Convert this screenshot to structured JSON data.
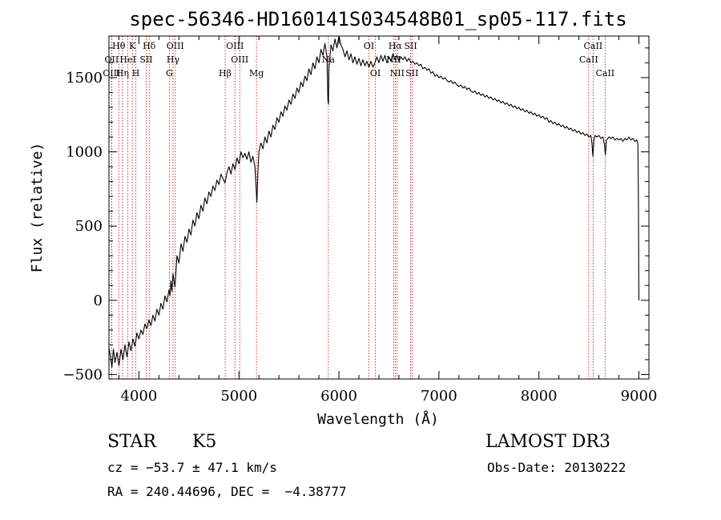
{
  "chart_data": {
    "type": "line",
    "title": "spec-56346-HD160141S034548B01_sp05-117.fits",
    "xlabel": "Wavelength (Å)",
    "ylabel": "Flux (relative)",
    "xlim": [
      3700,
      9100
    ],
    "ylim": [
      -530,
      1780
    ],
    "xticks": [
      4000,
      5000,
      6000,
      7000,
      8000,
      9000
    ],
    "yticks": [
      -500,
      0,
      500,
      1000,
      1500
    ],
    "series": [
      {
        "name": "spectrum",
        "points": [
          [
            3700,
            -320
          ],
          [
            3715,
            -380
          ],
          [
            3730,
            -450
          ],
          [
            3745,
            -330
          ],
          [
            3760,
            -420
          ],
          [
            3780,
            -350
          ],
          [
            3800,
            -440
          ],
          [
            3820,
            -330
          ],
          [
            3840,
            -400
          ],
          [
            3860,
            -300
          ],
          [
            3880,
            -380
          ],
          [
            3900,
            -280
          ],
          [
            3920,
            -340
          ],
          [
            3940,
            -260
          ],
          [
            3960,
            -310
          ],
          [
            3980,
            -220
          ],
          [
            4000,
            -260
          ],
          [
            4020,
            -200
          ],
          [
            4040,
            -230
          ],
          [
            4060,
            -160
          ],
          [
            4080,
            -190
          ],
          [
            4100,
            -130
          ],
          [
            4120,
            -170
          ],
          [
            4140,
            -100
          ],
          [
            4160,
            -140
          ],
          [
            4180,
            -60
          ],
          [
            4200,
            -100
          ],
          [
            4220,
            -20
          ],
          [
            4240,
            -60
          ],
          [
            4260,
            30
          ],
          [
            4280,
            -10
          ],
          [
            4300,
            70
          ],
          [
            4310,
            30
          ],
          [
            4320,
            130
          ],
          [
            4330,
            60
          ],
          [
            4340,
            180
          ],
          [
            4360,
            90
          ],
          [
            4380,
            300
          ],
          [
            4400,
            250
          ],
          [
            4420,
            380
          ],
          [
            4440,
            330
          ],
          [
            4460,
            430
          ],
          [
            4480,
            390
          ],
          [
            4500,
            480
          ],
          [
            4520,
            440
          ],
          [
            4540,
            540
          ],
          [
            4560,
            500
          ],
          [
            4580,
            590
          ],
          [
            4600,
            550
          ],
          [
            4620,
            640
          ],
          [
            4640,
            600
          ],
          [
            4660,
            690
          ],
          [
            4680,
            650
          ],
          [
            4700,
            730
          ],
          [
            4720,
            700
          ],
          [
            4740,
            770
          ],
          [
            4760,
            740
          ],
          [
            4780,
            810
          ],
          [
            4800,
            780
          ],
          [
            4820,
            850
          ],
          [
            4840,
            820
          ],
          [
            4860,
            790
          ],
          [
            4880,
            860
          ],
          [
            4900,
            900
          ],
          [
            4920,
            850
          ],
          [
            4940,
            920
          ],
          [
            4960,
            880
          ],
          [
            4980,
            960
          ],
          [
            5000,
            920
          ],
          [
            5020,
            1000
          ],
          [
            5040,
            960
          ],
          [
            5060,
            990
          ],
          [
            5080,
            950
          ],
          [
            5100,
            1000
          ],
          [
            5120,
            930
          ],
          [
            5140,
            970
          ],
          [
            5160,
            900
          ],
          [
            5170,
            780
          ],
          [
            5180,
            660
          ],
          [
            5190,
            880
          ],
          [
            5200,
            1000
          ],
          [
            5220,
            1060
          ],
          [
            5240,
            1020
          ],
          [
            5260,
            1100
          ],
          [
            5280,
            1060
          ],
          [
            5300,
            1140
          ],
          [
            5320,
            1100
          ],
          [
            5340,
            1180
          ],
          [
            5360,
            1150
          ],
          [
            5380,
            1230
          ],
          [
            5400,
            1200
          ],
          [
            5420,
            1270
          ],
          [
            5440,
            1240
          ],
          [
            5460,
            1310
          ],
          [
            5480,
            1280
          ],
          [
            5500,
            1350
          ],
          [
            5520,
            1320
          ],
          [
            5540,
            1390
          ],
          [
            5560,
            1360
          ],
          [
            5580,
            1430
          ],
          [
            5600,
            1400
          ],
          [
            5620,
            1470
          ],
          [
            5640,
            1440
          ],
          [
            5660,
            1510
          ],
          [
            5680,
            1480
          ],
          [
            5700,
            1560
          ],
          [
            5720,
            1520
          ],
          [
            5740,
            1600
          ],
          [
            5760,
            1560
          ],
          [
            5780,
            1640
          ],
          [
            5800,
            1600
          ],
          [
            5820,
            1690
          ],
          [
            5840,
            1650
          ],
          [
            5860,
            1730
          ],
          [
            5880,
            1640
          ],
          [
            5890,
            1350
          ],
          [
            5895,
            1320
          ],
          [
            5900,
            1560
          ],
          [
            5920,
            1720
          ],
          [
            5940,
            1680
          ],
          [
            5960,
            1760
          ],
          [
            5980,
            1700
          ],
          [
            6000,
            1780
          ],
          [
            6020,
            1720
          ],
          [
            6040,
            1690
          ],
          [
            6060,
            1640
          ],
          [
            6080,
            1680
          ],
          [
            6100,
            1620
          ],
          [
            6120,
            1660
          ],
          [
            6140,
            1600
          ],
          [
            6160,
            1640
          ],
          [
            6180,
            1590
          ],
          [
            6200,
            1630
          ],
          [
            6220,
            1580
          ],
          [
            6240,
            1620
          ],
          [
            6260,
            1580
          ],
          [
            6280,
            1610
          ],
          [
            6300,
            1570
          ],
          [
            6320,
            1610
          ],
          [
            6340,
            1570
          ],
          [
            6360,
            1600
          ],
          [
            6380,
            1640
          ],
          [
            6400,
            1600
          ],
          [
            6420,
            1650
          ],
          [
            6440,
            1610
          ],
          [
            6460,
            1650
          ],
          [
            6480,
            1600
          ],
          [
            6500,
            1640
          ],
          [
            6520,
            1610
          ],
          [
            6540,
            1660
          ],
          [
            6560,
            1620
          ],
          [
            6580,
            1650
          ],
          [
            6600,
            1610
          ],
          [
            6620,
            1640
          ],
          [
            6640,
            1620
          ],
          [
            6660,
            1640
          ],
          [
            6680,
            1610
          ],
          [
            6700,
            1630
          ],
          [
            6720,
            1600
          ],
          [
            6740,
            1610
          ],
          [
            6760,
            1590
          ],
          [
            6780,
            1600
          ],
          [
            6800,
            1580
          ],
          [
            6820,
            1590
          ],
          [
            6840,
            1560
          ],
          [
            6860,
            1570
          ],
          [
            6880,
            1550
          ],
          [
            6900,
            1560
          ],
          [
            6920,
            1530
          ],
          [
            6940,
            1540
          ],
          [
            6960,
            1510
          ],
          [
            6980,
            1520
          ],
          [
            7000,
            1500
          ],
          [
            7020,
            1510
          ],
          [
            7040,
            1490
          ],
          [
            7060,
            1500
          ],
          [
            7080,
            1480
          ],
          [
            7100,
            1470
          ],
          [
            7120,
            1480
          ],
          [
            7140,
            1460
          ],
          [
            7160,
            1470
          ],
          [
            7180,
            1450
          ],
          [
            7200,
            1440
          ],
          [
            7220,
            1450
          ],
          [
            7240,
            1430
          ],
          [
            7260,
            1440
          ],
          [
            7280,
            1420
          ],
          [
            7300,
            1430
          ],
          [
            7320,
            1410
          ],
          [
            7340,
            1400
          ],
          [
            7360,
            1410
          ],
          [
            7380,
            1390
          ],
          [
            7400,
            1400
          ],
          [
            7420,
            1380
          ],
          [
            7440,
            1390
          ],
          [
            7460,
            1370
          ],
          [
            7480,
            1380
          ],
          [
            7500,
            1360
          ],
          [
            7520,
            1370
          ],
          [
            7540,
            1350
          ],
          [
            7560,
            1360
          ],
          [
            7580,
            1340
          ],
          [
            7600,
            1350
          ],
          [
            7620,
            1330
          ],
          [
            7640,
            1340
          ],
          [
            7660,
            1320
          ],
          [
            7680,
            1330
          ],
          [
            7700,
            1310
          ],
          [
            7720,
            1320
          ],
          [
            7740,
            1300
          ],
          [
            7760,
            1310
          ],
          [
            7780,
            1290
          ],
          [
            7800,
            1300
          ],
          [
            7820,
            1280
          ],
          [
            7840,
            1290
          ],
          [
            7860,
            1270
          ],
          [
            7880,
            1280
          ],
          [
            7900,
            1260
          ],
          [
            7920,
            1270
          ],
          [
            7940,
            1250
          ],
          [
            7960,
            1260
          ],
          [
            7980,
            1240
          ],
          [
            8000,
            1250
          ],
          [
            8020,
            1230
          ],
          [
            8040,
            1240
          ],
          [
            8060,
            1220
          ],
          [
            8080,
            1230
          ],
          [
            8100,
            1200
          ],
          [
            8120,
            1210
          ],
          [
            8140,
            1190
          ],
          [
            8160,
            1200
          ],
          [
            8180,
            1180
          ],
          [
            8200,
            1190
          ],
          [
            8220,
            1170
          ],
          [
            8240,
            1180
          ],
          [
            8260,
            1160
          ],
          [
            8280,
            1170
          ],
          [
            8300,
            1150
          ],
          [
            8320,
            1160
          ],
          [
            8340,
            1140
          ],
          [
            8360,
            1150
          ],
          [
            8380,
            1130
          ],
          [
            8400,
            1140
          ],
          [
            8420,
            1120
          ],
          [
            8440,
            1130
          ],
          [
            8460,
            1110
          ],
          [
            8480,
            1120
          ],
          [
            8500,
            1100
          ],
          [
            8520,
            1110
          ],
          [
            8530,
            1060
          ],
          [
            8540,
            970
          ],
          [
            8550,
            1080
          ],
          [
            8560,
            1110
          ],
          [
            8580,
            1100
          ],
          [
            8600,
            1110
          ],
          [
            8620,
            1090
          ],
          [
            8640,
            1100
          ],
          [
            8655,
            1050
          ],
          [
            8665,
            980
          ],
          [
            8675,
            1080
          ],
          [
            8700,
            1100
          ],
          [
            8720,
            1090
          ],
          [
            8740,
            1100
          ],
          [
            8760,
            1080
          ],
          [
            8780,
            1090
          ],
          [
            8800,
            1080
          ],
          [
            8820,
            1090
          ],
          [
            8840,
            1070
          ],
          [
            8860,
            1090
          ],
          [
            8880,
            1080
          ],
          [
            8900,
            1100
          ],
          [
            8920,
            1080
          ],
          [
            8940,
            1090
          ],
          [
            8960,
            1070
          ],
          [
            8980,
            1080
          ],
          [
            8990,
            1050
          ],
          [
            8995,
            700
          ],
          [
            9000,
            0
          ]
        ]
      }
    ],
    "lines": [
      {
        "label": "Hθ",
        "wave": 3798,
        "row": 1
      },
      {
        "label": "OII",
        "wave": 3727,
        "row": 2
      },
      {
        "label": "OIII",
        "wave": 3727,
        "row": 3
      },
      {
        "label": "K",
        "wave": 3934,
        "row": 1
      },
      {
        "label": "HeI",
        "wave": 3889,
        "row": 2
      },
      {
        "label": "Hη",
        "wave": 3835,
        "row": 3
      },
      {
        "label": "Hδ",
        "wave": 4102,
        "row": 1
      },
      {
        "label": "SII",
        "wave": 4072,
        "row": 2
      },
      {
        "label": "H",
        "wave": 3969,
        "row": 3
      },
      {
        "label": "OIII",
        "wave": 4363,
        "row": 1
      },
      {
        "label": "Hγ",
        "wave": 4341,
        "row": 2
      },
      {
        "label": "G",
        "wave": 4305,
        "row": 3
      },
      {
        "label": "OIII",
        "wave": 4960,
        "row": 1
      },
      {
        "label": "OIII",
        "wave": 5008,
        "row": 2
      },
      {
        "label": "Hβ",
        "wave": 4862,
        "row": 3
      },
      {
        "label": "Mg",
        "wave": 5175,
        "row": 3
      },
      {
        "label": "Na",
        "wave": 5894,
        "row": 2
      },
      {
        "label": "OI",
        "wave": 6300,
        "row": 1
      },
      {
        "label": "OI",
        "wave": 6364,
        "row": 3
      },
      {
        "label": "Hα",
        "wave": 6563,
        "row": 1
      },
      {
        "label": "SII",
        "wave": 6717,
        "row": 1
      },
      {
        "label": "NII",
        "wave": 6548,
        "row": 2
      },
      {
        "label": "NII",
        "wave": 6583,
        "row": 3
      },
      {
        "label": "SII",
        "wave": 6731,
        "row": 3
      },
      {
        "label": "CaII",
        "wave": 8542,
        "row": 1
      },
      {
        "label": "CaII",
        "wave": 8498,
        "row": 2
      },
      {
        "label": "CaII",
        "wave": 8662,
        "row": 3
      }
    ]
  },
  "info": {
    "object_class": "STAR",
    "subclass": "K5",
    "survey": "LAMOST DR3",
    "cz": "cz = −53.7 ± 47.1 km/s",
    "obs_date": "Obs-Date: 20130222",
    "coords": "RA = 240.44696, DEC =  −4.38777"
  },
  "colors": {
    "line_marker": "#cc0000",
    "spectrum": "#000000",
    "axis": "#000000"
  }
}
